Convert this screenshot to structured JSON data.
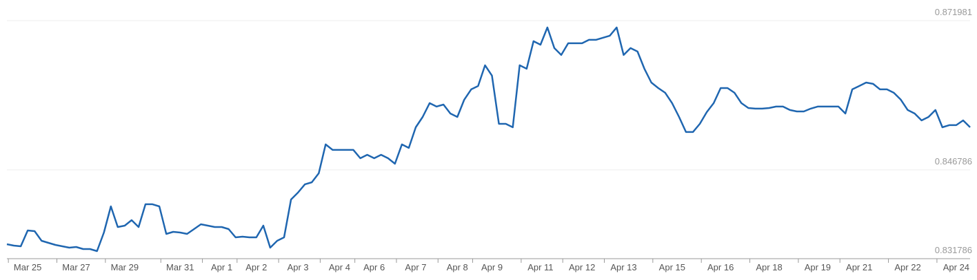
{
  "chart_data": {
    "type": "line",
    "color": "#1f66b0",
    "grid": true,
    "ylim": [
      0.831786,
      0.871981
    ],
    "yticks": [
      0.831786,
      0.846786,
      0.871981
    ],
    "categories": [
      null,
      null,
      null,
      "Mar 25",
      null,
      null,
      null,
      null,
      null,
      null,
      "Mar 27",
      null,
      null,
      null,
      null,
      null,
      null,
      "Mar 29",
      null,
      null,
      null,
      null,
      null,
      null,
      null,
      "Mar 31",
      null,
      null,
      null,
      null,
      null,
      "Apr 1",
      null,
      null,
      null,
      null,
      "Apr 2",
      null,
      null,
      null,
      null,
      null,
      "Apr 3",
      null,
      null,
      null,
      null,
      null,
      "Apr 4",
      null,
      null,
      null,
      null,
      "Apr 6",
      null,
      null,
      null,
      null,
      null,
      "Apr 7",
      null,
      null,
      null,
      null,
      null,
      "Apr 8",
      null,
      null,
      null,
      null,
      "Apr 9",
      null,
      null,
      null,
      null,
      null,
      null,
      "Apr 11",
      null,
      null,
      null,
      null,
      null,
      "Apr 12",
      null,
      null,
      null,
      null,
      null,
      "Apr 13",
      null,
      null,
      null,
      null,
      null,
      null,
      "Apr 15",
      null,
      null,
      null,
      null,
      null,
      null,
      "Apr 16",
      null,
      null,
      null,
      null,
      null,
      null,
      "Apr 18",
      null,
      null,
      null,
      null,
      null,
      null,
      "Apr 19",
      null,
      null,
      null,
      null,
      null,
      "Apr 21",
      null,
      null,
      null,
      null,
      null,
      null,
      "Apr 22",
      null,
      null,
      null,
      null,
      null,
      null,
      "Apr 24",
      null,
      null
    ],
    "values": [
      0.83423,
      0.83399,
      0.83388,
      0.83655,
      0.83643,
      0.83481,
      0.83446,
      0.83411,
      0.83388,
      0.83365,
      0.83376,
      0.83341,
      0.83341,
      0.83306,
      0.8362,
      0.84062,
      0.83713,
      0.83736,
      0.83829,
      0.83713,
      0.84097,
      0.84097,
      0.84062,
      0.83597,
      0.83632,
      0.8362,
      0.83597,
      0.83678,
      0.8376,
      0.83736,
      0.83713,
      0.83713,
      0.83678,
      0.83539,
      0.8355,
      0.83539,
      0.83539,
      0.83736,
      0.83365,
      0.83481,
      0.83539,
      0.84178,
      0.84294,
      0.84434,
      0.84468,
      0.8462,
      0.85108,
      0.85015,
      0.85015,
      0.85015,
      0.85015,
      0.84875,
      0.84933,
      0.84875,
      0.84933,
      0.84875,
      0.84782,
      0.85108,
      0.85049,
      0.85398,
      0.85572,
      0.85805,
      0.85747,
      0.85781,
      0.8563,
      0.85572,
      0.85863,
      0.86037,
      0.86095,
      0.86444,
      0.8627,
      0.85456,
      0.85456,
      0.85398,
      0.86444,
      0.86386,
      0.86851,
      0.86792,
      0.87083,
      0.86734,
      0.86618,
      0.86816,
      0.86816,
      0.86816,
      0.86874,
      0.86874,
      0.86909,
      0.86944,
      0.87083,
      0.86618,
      0.86734,
      0.86676,
      0.86386,
      0.86153,
      0.8606,
      0.85979,
      0.85805,
      0.85572,
      0.85317,
      0.85317,
      0.85456,
      0.85654,
      0.85805,
      0.8606,
      0.8606,
      0.85979,
      0.85805,
      0.85723,
      0.85712,
      0.85712,
      0.85723,
      0.85747,
      0.85747,
      0.85689,
      0.85665,
      0.85665,
      0.85712,
      0.85747,
      0.85747,
      0.85747,
      0.85747,
      0.8563,
      0.86037,
      0.86095,
      0.86153,
      0.8613,
      0.86037,
      0.86037,
      0.85979,
      0.85863,
      0.85689,
      0.8563,
      0.85514,
      0.85572,
      0.85689,
      0.85398,
      0.85433,
      0.85433,
      0.85514,
      0.85398
    ]
  }
}
